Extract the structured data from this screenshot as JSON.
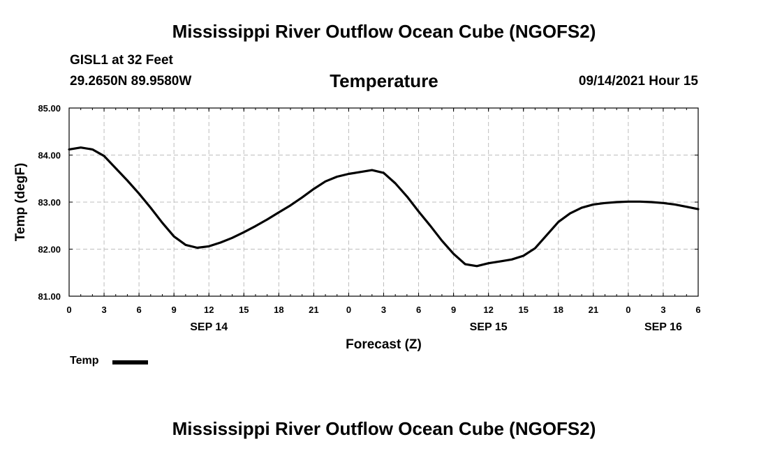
{
  "header": {
    "title": "Mississippi River Outflow Ocean Cube (NGOFS2)",
    "station": "GISL1 at 32 Feet",
    "coords": "29.2650N  89.9580W",
    "plot_title": "Temperature",
    "timestamp": "09/14/2021 Hour 15"
  },
  "footer": {
    "title": "Mississippi River Outflow Ocean Cube (NGOFS2)"
  },
  "legend": {
    "label": "Temp",
    "color": "#000000"
  },
  "chart_data": {
    "type": "line",
    "title": "Temperature",
    "xlabel": "Forecast (Z)",
    "ylabel": "Temp (degF)",
    "xlim": [
      0,
      54
    ],
    "ylim": [
      81.0,
      85.0
    ],
    "grid": true,
    "x_ticks": [
      0,
      3,
      6,
      9,
      12,
      15,
      18,
      21,
      24,
      27,
      30,
      33,
      36,
      39,
      42,
      45,
      48,
      51,
      54
    ],
    "x_tick_labels": [
      "0",
      "3",
      "6",
      "9",
      "12",
      "15",
      "18",
      "21",
      "0",
      "3",
      "6",
      "9",
      "12",
      "15",
      "18",
      "21",
      "0",
      "3",
      "6"
    ],
    "y_ticks": [
      81.0,
      82.0,
      83.0,
      84.0,
      85.0
    ],
    "y_tick_labels": [
      "81.00",
      "82.00",
      "83.00",
      "84.00",
      "85.00"
    ],
    "date_labels": [
      {
        "x": 12,
        "label": "SEP 14"
      },
      {
        "x": 36,
        "label": "SEP 15"
      },
      {
        "x": 51,
        "label": "SEP 16"
      }
    ],
    "series": [
      {
        "name": "Temp",
        "x": [
          0,
          1,
          2,
          3,
          4,
          5,
          6,
          7,
          8,
          9,
          10,
          11,
          12,
          13,
          14,
          15,
          16,
          17,
          18,
          19,
          20,
          21,
          22,
          23,
          24,
          25,
          26,
          27,
          28,
          29,
          30,
          31,
          32,
          33,
          34,
          35,
          36,
          37,
          38,
          39,
          40,
          41,
          42,
          43,
          44,
          45,
          46,
          47,
          48,
          49,
          50,
          51,
          52,
          53,
          54
        ],
        "values": [
          84.12,
          84.16,
          84.12,
          83.98,
          83.72,
          83.46,
          83.18,
          82.88,
          82.56,
          82.27,
          82.09,
          82.03,
          82.06,
          82.14,
          82.24,
          82.36,
          82.49,
          82.63,
          82.78,
          82.93,
          83.1,
          83.28,
          83.44,
          83.54,
          83.6,
          83.64,
          83.68,
          83.62,
          83.4,
          83.12,
          82.8,
          82.5,
          82.18,
          81.9,
          81.68,
          81.64,
          81.7,
          81.74,
          81.78,
          81.86,
          82.02,
          82.3,
          82.58,
          82.76,
          82.88,
          82.95,
          82.98,
          83.0,
          83.01,
          83.01,
          83.0,
          82.98,
          82.95,
          82.9,
          82.85
        ]
      }
    ]
  }
}
